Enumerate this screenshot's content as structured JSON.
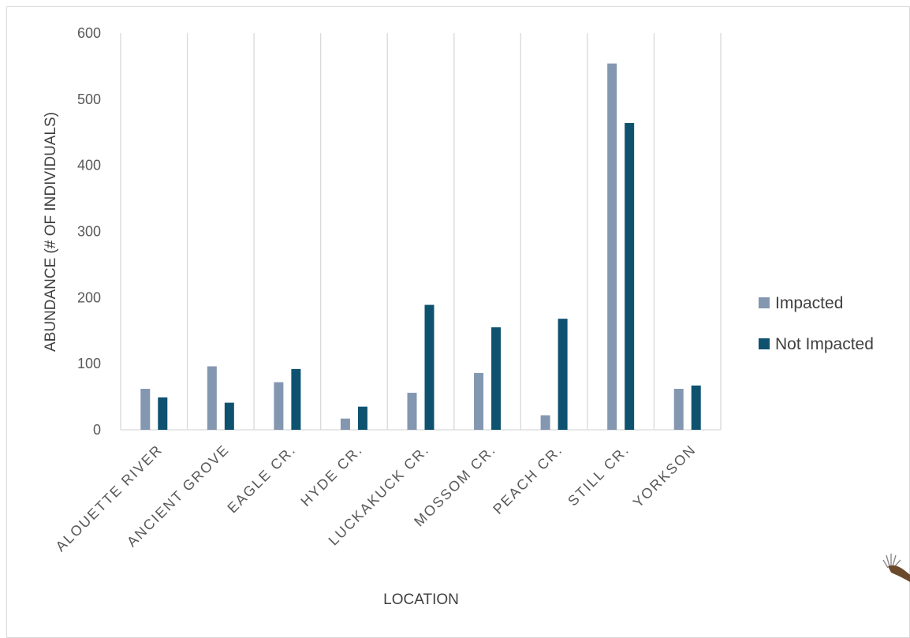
{
  "colors": {
    "impacted": "#8497b0",
    "not_impacted": "#0f5270",
    "grid": "#d9d9d9"
  },
  "chart_data": {
    "type": "bar",
    "title": "",
    "xlabel": "LOCATION",
    "ylabel": "ABUNDANCE (# OF INDIVIDUALS)",
    "ylim": [
      0,
      600
    ],
    "yticks": [
      0,
      100,
      200,
      300,
      400,
      500,
      600
    ],
    "categories": [
      "ALOUETTE RIVER",
      "ANCIENT GROVE",
      "EAGLE CR.",
      "HYDE CR.",
      "LUCKAKUCK CR.",
      "MOSSOM CR.",
      "PEACH CR.",
      "STILL CR.",
      "YORKSON"
    ],
    "series": [
      {
        "name": "Impacted",
        "values": [
          62,
          96,
          72,
          17,
          56,
          86,
          22,
          554,
          62
        ]
      },
      {
        "name": "Not Impacted",
        "values": [
          49,
          41,
          92,
          35,
          189,
          155,
          168,
          464,
          67
        ]
      }
    ],
    "grid": true,
    "legend_position": "right"
  }
}
